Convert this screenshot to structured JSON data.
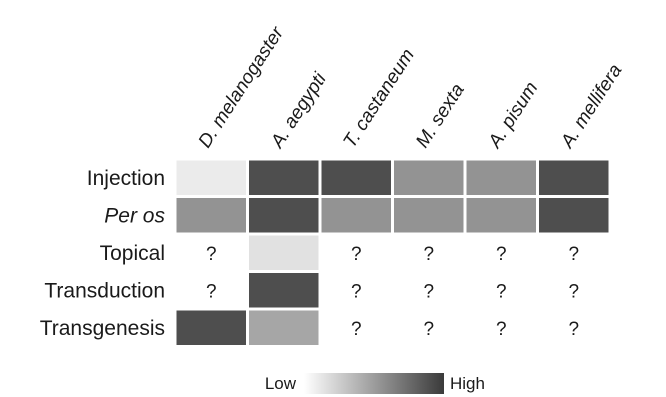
{
  "chart_data": {
    "type": "heatmap",
    "columns": [
      "D. melanogaster",
      "A. aegypti",
      "T. castaneum",
      "M. sexta",
      "A. pisum",
      "A. mellifera"
    ],
    "rows": [
      "Injection",
      "Per os",
      "Topical",
      "Transduction",
      "Transgenesis"
    ],
    "italic_rows": [
      "Per os"
    ],
    "unknown_symbol": "?",
    "values": [
      [
        0.1,
        0.9,
        0.9,
        0.55,
        0.55,
        0.9
      ],
      [
        0.55,
        0.9,
        0.55,
        0.55,
        0.55,
        0.9
      ],
      [
        null,
        0.15,
        null,
        null,
        null,
        null
      ],
      [
        null,
        0.9,
        null,
        null,
        null,
        null
      ],
      [
        0.9,
        0.45,
        null,
        null,
        null,
        null
      ]
    ],
    "scale": {
      "low_label": "Low",
      "high_label": "High",
      "low_color": "#ffffff",
      "high_color": "#3a3a3a"
    }
  }
}
